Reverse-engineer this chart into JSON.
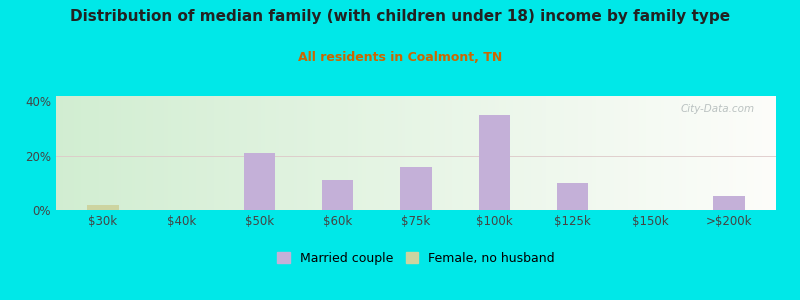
{
  "title": "Distribution of median family (with children under 18) income by family type",
  "subtitle": "All residents in Coalmont, TN",
  "categories": [
    "$30k",
    "$40k",
    "$50k",
    "$60k",
    "$75k",
    "$100k",
    "$125k",
    "$150k",
    ">$200k"
  ],
  "married_couple": [
    0,
    0,
    21,
    11,
    16,
    35,
    10,
    0,
    5
  ],
  "female_no_husband": [
    2,
    0,
    0,
    0,
    0,
    0,
    0,
    0,
    0
  ],
  "bar_color_married": "#c4b0d8",
  "bar_color_female": "#cdd4a0",
  "title_color": "#222222",
  "subtitle_color": "#cc6600",
  "background_outer": "#00e8e8",
  "ylim": [
    0,
    42
  ],
  "yticks": [
    0,
    20,
    40
  ],
  "ytick_labels": [
    "0%",
    "20%",
    "40%"
  ],
  "grid_color": "#e0c8c8",
  "bar_width": 0.4,
  "legend_married": "Married couple",
  "legend_female": "Female, no husband",
  "watermark": "City-Data.com"
}
